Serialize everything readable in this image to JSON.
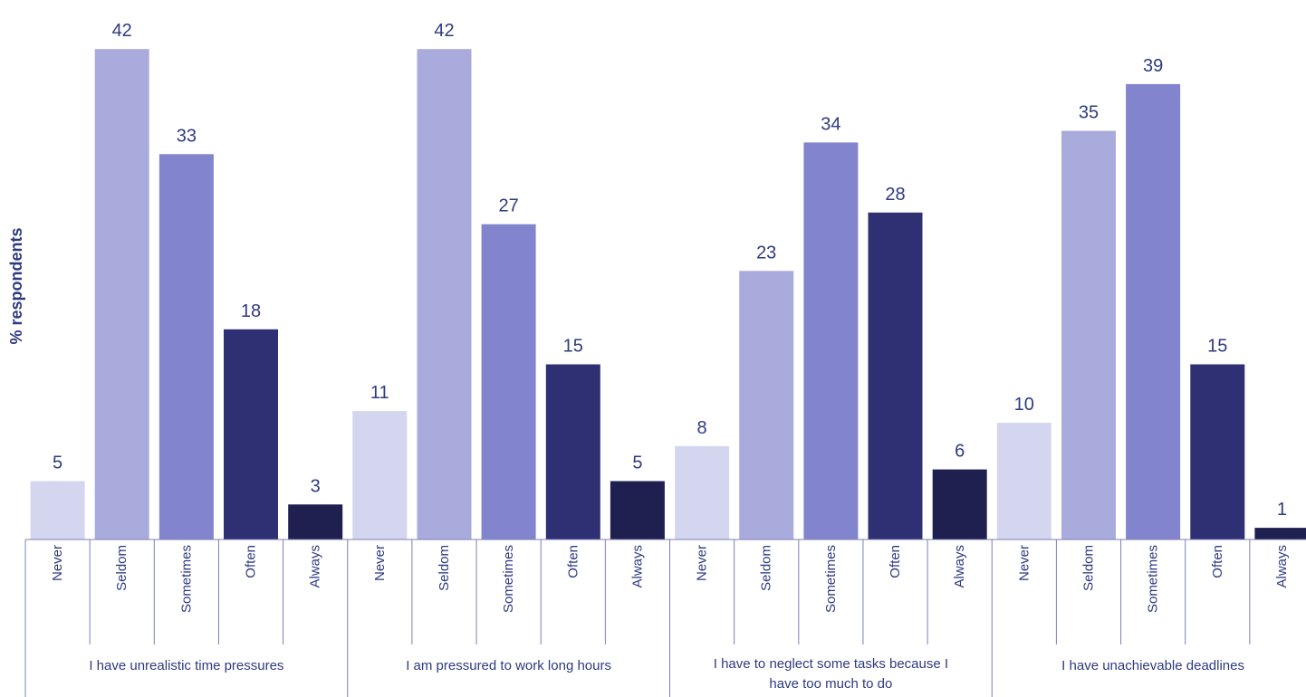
{
  "chart_data": {
    "type": "bar",
    "ylabel": "% respondents",
    "ylim": [
      0,
      45
    ],
    "grid": false,
    "legend": "none",
    "categories": [
      "Never",
      "Seldom",
      "Sometimes",
      "Often",
      "Always"
    ],
    "colors": {
      "Never": "#d4d6ef",
      "Seldom": "#aaabdd",
      "Sometimes": "#8284cd",
      "Often": "#2e3073",
      "Always": "#1f1f50"
    },
    "groups": [
      {
        "label": [
          "I have unrealistic time pressures"
        ],
        "values": [
          5,
          42,
          33,
          18,
          3
        ]
      },
      {
        "label": [
          "I am pressured to work long hours"
        ],
        "values": [
          11,
          42,
          27,
          15,
          5
        ]
      },
      {
        "label": [
          "I have to neglect some tasks because I",
          "have too much to do"
        ],
        "values": [
          8,
          23,
          34,
          28,
          6
        ]
      },
      {
        "label": [
          "I have unachievable deadlines"
        ],
        "values": [
          10,
          35,
          39,
          15,
          1
        ]
      }
    ]
  }
}
